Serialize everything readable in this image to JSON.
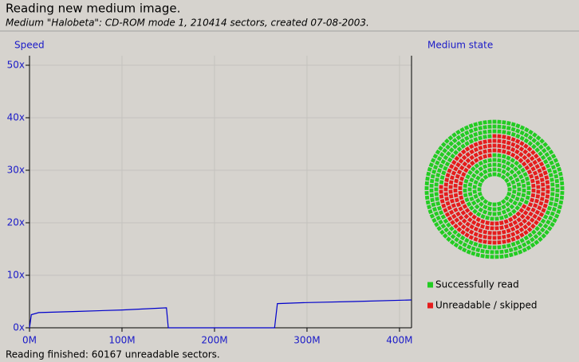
{
  "header": {
    "title": "Reading new medium image.",
    "subtitle": "Medium \"Halobeta\": CD-ROM mode 1, 210414 sectors, created 07-08-2003."
  },
  "chart_data": {
    "type": "line",
    "title": "Speed",
    "x": [
      0,
      2,
      10,
      50,
      100,
      148,
      150,
      200,
      265,
      268,
      300,
      350,
      413
    ],
    "series": [
      {
        "color": "#0000cc",
        "values": [
          0,
          2.5,
          2.9,
          3.1,
          3.4,
          3.8,
          0,
          0,
          0,
          4.6,
          4.8,
          5.0,
          5.3
        ]
      }
    ],
    "xlim": [
      0,
      413
    ],
    "xticks": [
      {
        "value": 0,
        "label": "0M"
      },
      {
        "value": 100,
        "label": "100M"
      },
      {
        "value": 200,
        "label": "200M"
      },
      {
        "value": 300,
        "label": "300M"
      },
      {
        "value": 400,
        "label": "400M"
      }
    ],
    "ylim": [
      0,
      50
    ],
    "yticks": [
      {
        "value": 0,
        "label": "0x"
      },
      {
        "value": 10,
        "label": "10x"
      },
      {
        "value": 20,
        "label": "20x"
      },
      {
        "value": 30,
        "label": "30x"
      },
      {
        "value": 40,
        "label": "40x"
      },
      {
        "value": 50,
        "label": "50x"
      }
    ],
    "grid": true
  },
  "medium_state": {
    "title": "Medium state",
    "legend": [
      {
        "label": "Successfully read",
        "color": "#22cc22"
      },
      {
        "label": "Unreadable / skipped",
        "color": "#e51c1c"
      }
    ]
  },
  "status": "Reading finished: 60167 unreadable sectors."
}
